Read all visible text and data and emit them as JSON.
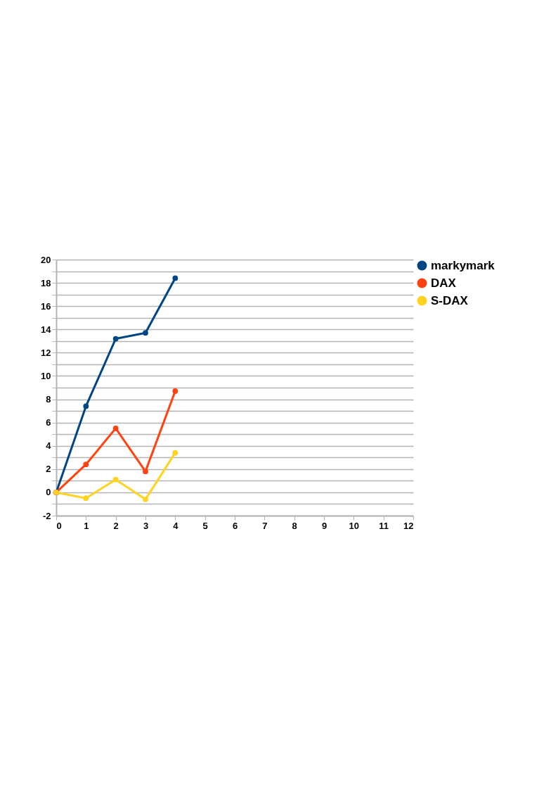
{
  "chart_data": {
    "type": "line",
    "x": [
      0,
      1,
      2,
      3,
      4
    ],
    "series": [
      {
        "name": "markymark",
        "color": "#004586",
        "values": [
          0,
          7.4,
          13.2,
          13.7,
          18.4
        ]
      },
      {
        "name": "DAX",
        "color": "#ff420e",
        "values": [
          0,
          2.4,
          5.5,
          1.8,
          8.7
        ]
      },
      {
        "name": "S-DAX",
        "color": "#ffd320",
        "values": [
          0,
          -0.5,
          1.1,
          -0.6,
          3.4
        ]
      }
    ],
    "xlim": [
      0,
      12
    ],
    "xticks": [
      0,
      1,
      2,
      3,
      4,
      5,
      6,
      7,
      8,
      9,
      10,
      11,
      12
    ],
    "ylim": [
      -2,
      20
    ],
    "yticks": [
      -2,
      {
        "value": -1,
        "label": null
      },
      0,
      {
        "value": 1,
        "label": null
      },
      2,
      {
        "value": 3,
        "label": null
      },
      4,
      {
        "value": 5,
        "label": null
      },
      6,
      {
        "value": 7,
        "label": null
      },
      8,
      {
        "value": 9,
        "label": null
      },
      10,
      {
        "value": 11,
        "label": null
      },
      12,
      {
        "value": 13,
        "label": null
      },
      14,
      {
        "value": 15,
        "label": null
      },
      16,
      {
        "value": 17,
        "label": null
      },
      18,
      {
        "value": 19,
        "label": null
      },
      20
    ],
    "grid": "y",
    "legend": "right",
    "marker": "circle",
    "line_style": "solid"
  }
}
